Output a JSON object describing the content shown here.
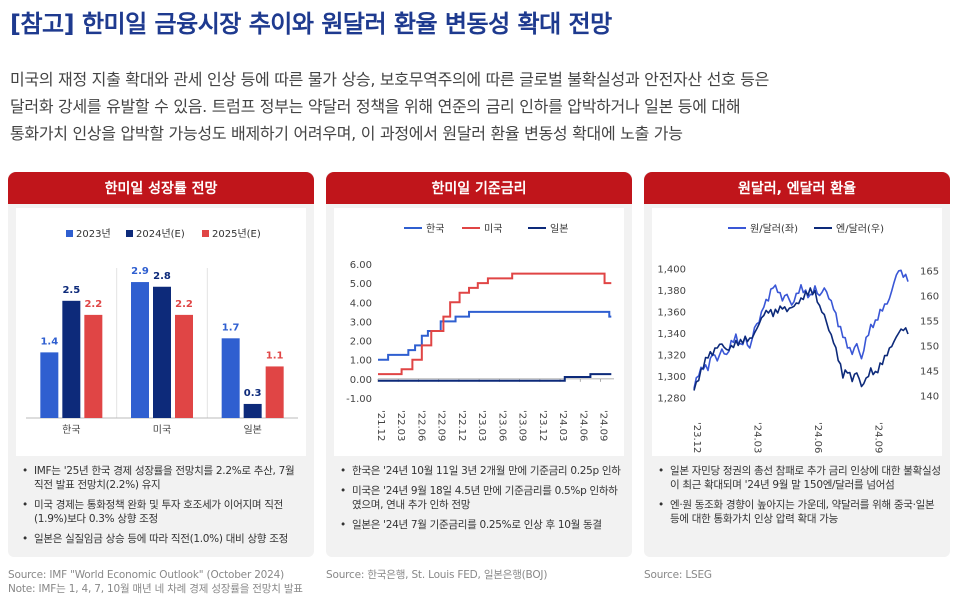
{
  "title": "[참고] 한미일 금융시장 추이와 원달러 환율 변동성 확대 전망",
  "intro": [
    "미국의 재정 지출 확대와 관세 인상 등에 따른 물가 상승, 보호무역주의에 따른 글로벌 불확실성과 안전자산 선호 등은",
    "달러화 강세를 유발할 수 있음. 트럼프 정부는 약달러 정책을 위해 연준의 금리 인하를 압박하거나 일본 등에 대해",
    "통화가치 인상을 압박할 가능성도 배제하기 어려우며, 이 과정에서 원달러 환율 변동성 확대에 노출 가능"
  ],
  "colors": {
    "red": "#c0151b",
    "navy": "#1e3a8f",
    "blue": "#2f5fd0",
    "light_blue": "#3a57d6",
    "dark_navy": "#0d2a7a",
    "coral": "#e04545"
  },
  "panels": [
    {
      "title": "한미일 성장률 전망",
      "notes": [
        "IMF는 '25년 한국 경제 성장률을 전망치를 2.2%로 추산, 7월 직전 발표 전망치(2.2%) 유지",
        "미국 경제는 통화정책 완화 및 투자 호조세가 이어지며 직전(1.9%)보다 0.3% 상향 조정",
        "일본은 실질임금 상승 등에 따라 직전(1.0%) 대비 상향 조정"
      ],
      "source": [
        "Source: IMF \"World Economic Outlook\" (October 2024)",
        "Note: IMF는 1, 4, 7, 10월 매년 네 차례 경제 성장률을 전망치 발표"
      ]
    },
    {
      "title": "한미일 기준금리",
      "notes": [
        "한국은 '24년 10월 11일 3년 2개월 만에 기준금리 0.25p 인하",
        "미국은 '24년 9월 18일 4.5년 만에 기준금리를 0.5%p 인하하였으며, 연내 추가 인하 전망",
        "일본은 '24년 7월 기준금리를 0.25%로 인상 후 10월 동결"
      ],
      "source": [
        "Source: 한국은행, St. Louis FED, 일본은행(BOJ)"
      ]
    },
    {
      "title": "원달러, 엔달러 환율",
      "notes": [
        "일본 자민당 정권의 총선 참패로 추가 금리 인상에 대한 불확실성이 최근 확대되며 '24년 9월 말 150엔/달러를 넘어섬",
        "엔·원 동조화 경향이 높아지는 가운데, 약달러를 위해 중국·일본 등에 대한 통화가치 인상 압력 확대 가능"
      ],
      "source": [
        "Source: LSEG"
      ]
    }
  ],
  "chart_data": [
    {
      "type": "bar",
      "categories": [
        "한국",
        "미국",
        "일본"
      ],
      "series": [
        {
          "name": "2023년",
          "color": "#2f5fd0",
          "values": [
            1.4,
            2.9,
            1.7
          ]
        },
        {
          "name": "2024년(E)",
          "color": "#0d2a7a",
          "values": [
            2.5,
            2.8,
            0.3
          ]
        },
        {
          "name": "2025년(E)",
          "color": "#e04545",
          "values": [
            2.2,
            2.2,
            1.1
          ]
        }
      ],
      "value_labels": [
        [
          "1.4",
          "2.5",
          "2.2"
        ],
        [
          "2.9",
          "2.8",
          "2.2"
        ],
        [
          "1.7",
          "0.3",
          "1.1"
        ]
      ],
      "ylim": [
        0,
        3.2
      ],
      "legend": "top"
    },
    {
      "type": "line",
      "x_ticks": [
        "'21.12",
        "'22.03",
        "'22.06",
        "'22.09",
        "'22.12",
        "'23.03",
        "'23.06",
        "'23.09",
        "'23.12",
        "'24.03",
        "'24.06",
        "'24.09"
      ],
      "y_ticks": [
        "6.00",
        "5.00",
        "4.00",
        "3.00",
        "2.00",
        "1.00",
        "0.00",
        "-1.00"
      ],
      "ylim": [
        -1,
        6
      ],
      "series": [
        {
          "name": "한국",
          "color": "#2f5fd0",
          "steps": [
            [
              0,
              1.0
            ],
            [
              1.5,
              1.25
            ],
            [
              4.5,
              1.5
            ],
            [
              5.5,
              1.75
            ],
            [
              6.5,
              2.25
            ],
            [
              7.4,
              2.5
            ],
            [
              9.3,
              3.0
            ],
            [
              11.5,
              3.25
            ],
            [
              13.5,
              3.5
            ],
            [
              34.3,
              3.25
            ]
          ]
        },
        {
          "name": "미국",
          "color": "#e04545",
          "steps": [
            [
              0,
              0.25
            ],
            [
              3.5,
              0.5
            ],
            [
              5.1,
              1.0
            ],
            [
              6.5,
              1.75
            ],
            [
              7.9,
              2.5
            ],
            [
              9.7,
              3.25
            ],
            [
              10.7,
              4.0
            ],
            [
              12.1,
              4.5
            ],
            [
              13.5,
              4.75
            ],
            [
              14.8,
              5.0
            ],
            [
              16.3,
              5.25
            ],
            [
              19.9,
              5.5
            ],
            [
              33.6,
              5.0
            ]
          ]
        },
        {
          "name": "일본",
          "color": "#0d2a7a",
          "steps": [
            [
              0,
              -0.1
            ],
            [
              27.7,
              0.1
            ],
            [
              31.5,
              0.25
            ]
          ]
        }
      ],
      "x_range_months": [
        0,
        35
      ],
      "legend": "top"
    },
    {
      "type": "line",
      "x_ticks": [
        "'23.12",
        "'24.03",
        "'24.06",
        "'24.09"
      ],
      "y_left_ticks": [
        "1,400",
        "1,380",
        "1,360",
        "1,340",
        "1,320",
        "1,300",
        "1,280"
      ],
      "y_right_ticks": [
        "165",
        "160",
        "155",
        "150",
        "145",
        "140"
      ],
      "y_left_lim": [
        1270,
        1410
      ],
      "y_right_lim": [
        137.5,
        167.5
      ],
      "series": [
        {
          "name": "원/달러(좌)",
          "axis": "left",
          "color": "#3a57d6",
          "points": [
            [
              0,
              1288
            ],
            [
              1,
              1300
            ],
            [
              2,
              1306
            ],
            [
              3,
              1305
            ],
            [
              4,
              1320
            ],
            [
              5,
              1314
            ],
            [
              6,
              1325
            ],
            [
              7,
              1320
            ],
            [
              8,
              1333
            ],
            [
              9,
              1339
            ],
            [
              10,
              1330
            ],
            [
              11,
              1337
            ],
            [
              12,
              1326
            ],
            [
              13,
              1345
            ],
            [
              14,
              1350
            ],
            [
              15,
              1364
            ],
            [
              16,
              1370
            ],
            [
              17,
              1382
            ],
            [
              18,
              1378
            ],
            [
              19,
              1370
            ],
            [
              20,
              1376
            ],
            [
              21,
              1366
            ],
            [
              22,
              1377
            ],
            [
              23,
              1385
            ],
            [
              24,
              1380
            ],
            [
              25,
              1376
            ],
            [
              26,
              1384
            ],
            [
              27,
              1375
            ],
            [
              28,
              1382
            ],
            [
              29,
              1372
            ],
            [
              30,
              1362
            ],
            [
              31,
              1346
            ],
            [
              32,
              1336
            ],
            [
              33,
              1326
            ],
            [
              34,
              1320
            ],
            [
              35,
              1330
            ],
            [
              36,
              1316
            ],
            [
              37,
              1336
            ],
            [
              38,
              1348
            ],
            [
              39,
              1352
            ],
            [
              40,
              1362
            ],
            [
              41,
              1367
            ],
            [
              42,
              1372
            ],
            [
              43,
              1387
            ],
            [
              44,
              1398
            ],
            [
              45,
              1392
            ],
            [
              46,
              1388
            ]
          ]
        },
        {
          "name": "엔/달러(우)",
          "axis": "right",
          "color": "#0d2a7a",
          "points": [
            [
              0,
              141.0
            ],
            [
              1,
              143.0
            ],
            [
              2,
              145.5
            ],
            [
              3,
              147.5
            ],
            [
              4,
              148.0
            ],
            [
              5,
              149.5
            ],
            [
              6,
              150.3
            ],
            [
              7,
              149.2
            ],
            [
              8,
              150.0
            ],
            [
              9,
              151.0
            ],
            [
              10,
              151.2
            ],
            [
              11,
              151.8
            ],
            [
              12,
              151.5
            ],
            [
              13,
              152.5
            ],
            [
              14,
              154.3
            ],
            [
              15,
              156.0
            ],
            [
              16,
              156.5
            ],
            [
              17,
              155.8
            ],
            [
              18,
              156.5
            ],
            [
              19,
              157.3
            ],
            [
              20,
              156.8
            ],
            [
              21,
              157.6
            ],
            [
              22,
              158.5
            ],
            [
              23,
              159.5
            ],
            [
              24,
              160.8
            ],
            [
              25,
              161.5
            ],
            [
              26,
              161.0
            ],
            [
              27,
              158.0
            ],
            [
              28,
              156.2
            ],
            [
              29,
              153.0
            ],
            [
              30,
              150.5
            ],
            [
              31,
              147.0
            ],
            [
              32,
              143.5
            ],
            [
              33,
              144.5
            ],
            [
              34,
              142.8
            ],
            [
              35,
              144.5
            ],
            [
              36,
              141.8
            ],
            [
              37,
              143.5
            ],
            [
              38,
              145.5
            ],
            [
              39,
              144.8
            ],
            [
              40,
              146.5
            ],
            [
              41,
              148.0
            ],
            [
              42,
              149.5
            ],
            [
              43,
              150.8
            ],
            [
              44,
              152.5
            ],
            [
              45,
              153.0
            ],
            [
              46,
              152.3
            ]
          ]
        }
      ],
      "legend": "top"
    }
  ]
}
